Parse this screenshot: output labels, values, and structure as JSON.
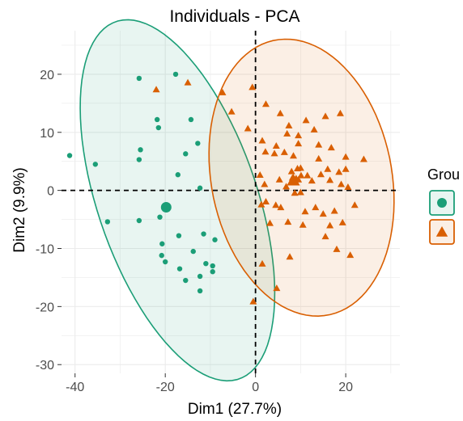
{
  "chart_data": {
    "type": "scatter",
    "title": "Individuals - PCA",
    "xlabel": "Dim1 (27.7%)",
    "ylabel": "Dim2 (9.9%)",
    "xlim": [
      -43,
      32
    ],
    "ylim": [
      -31.5,
      27.5
    ],
    "xticks": [
      -40,
      -20,
      0,
      20
    ],
    "yticks": [
      -30,
      -20,
      -10,
      0,
      10,
      20
    ],
    "grid": true,
    "legend": {
      "title": "Grou",
      "position": "right"
    },
    "colors": {
      "g1": "#1b9e77",
      "g2": "#d95f02"
    },
    "series": [
      {
        "marker": "circle",
        "color": "#1b9e77",
        "centroid": [
          -19.8,
          -2.9
        ],
        "ellipse": {
          "center": [
            -17.3,
            -1.7
          ],
          "semi_axes": [
            33.8,
            17.0
          ],
          "angle_deg": -63,
          "fill": "#1b9e77",
          "fill_opacity": 0.1
        },
        "points": [
          [
            -41.2,
            6.0
          ],
          [
            -35.5,
            4.5
          ],
          [
            -32.8,
            -5.4
          ],
          [
            -25.8,
            19.3
          ],
          [
            -25.5,
            7.0
          ],
          [
            -25.8,
            5.3
          ],
          [
            -25.8,
            -5.2
          ],
          [
            -21.8,
            12.2
          ],
          [
            -21.5,
            10.8
          ],
          [
            -21.2,
            -4.6
          ],
          [
            -20.7,
            -9.2
          ],
          [
            -20.0,
            -12.3
          ],
          [
            -17.7,
            20.0
          ],
          [
            -17.2,
            2.7
          ],
          [
            -17.0,
            -7.8
          ],
          [
            -16.8,
            -13.5
          ],
          [
            -15.5,
            6.3
          ],
          [
            -15.5,
            -15.5
          ],
          [
            -14.3,
            12.2
          ],
          [
            -13.8,
            -10.5
          ],
          [
            -12.8,
            8.1
          ],
          [
            -12.3,
            0.4
          ],
          [
            -12.3,
            -14.8
          ],
          [
            -12.3,
            -17.3
          ],
          [
            -11.5,
            -7.5
          ],
          [
            -9.5,
            -13.0
          ],
          [
            -9.5,
            -14.0
          ],
          [
            -9.0,
            -8.5
          ],
          [
            -20.8,
            -11.2
          ],
          [
            -11.0,
            -12.6
          ]
        ]
      },
      {
        "marker": "triangle",
        "color": "#d95f02",
        "centroid": [
          8.4,
          1.6
        ],
        "ellipse": {
          "center": [
            10.2,
            2.2
          ],
          "semi_axes": [
            24.6,
            19.6
          ],
          "angle_deg": -66,
          "fill": "#d95f02",
          "fill_opacity": 0.1
        },
        "points": [
          [
            -22.0,
            17.3
          ],
          [
            -15.0,
            18.5
          ],
          [
            -7.3,
            16.8
          ],
          [
            -5.3,
            13.5
          ],
          [
            -1.7,
            10.6
          ],
          [
            -0.7,
            17.7
          ],
          [
            1.0,
            2.6
          ],
          [
            1.3,
            -2.5
          ],
          [
            2.0,
            1.0
          ],
          [
            1.5,
            8.5
          ],
          [
            2.2,
            6.6
          ],
          [
            2.3,
            -2.0
          ],
          [
            2.3,
            14.8
          ],
          [
            3.2,
            -5.7
          ],
          [
            4.2,
            6.3
          ],
          [
            4.5,
            -2.6
          ],
          [
            4.6,
            7.6
          ],
          [
            5.3,
            1.8
          ],
          [
            5.5,
            13.2
          ],
          [
            5.6,
            -3.0
          ],
          [
            6.4,
            6.5
          ],
          [
            6.8,
            0.6
          ],
          [
            7.0,
            9.7
          ],
          [
            7.2,
            -5.5
          ],
          [
            7.4,
            11.1
          ],
          [
            7.6,
            -11.5
          ],
          [
            8.0,
            3.2
          ],
          [
            8.2,
            2.1
          ],
          [
            8.4,
            5.9
          ],
          [
            8.7,
            -0.5
          ],
          [
            9.0,
            2.0
          ],
          [
            9.3,
            3.7
          ],
          [
            9.5,
            8.0
          ],
          [
            9.5,
            9.4
          ],
          [
            10.0,
            -0.4
          ],
          [
            10.0,
            3.8
          ],
          [
            10.1,
            2.5
          ],
          [
            10.5,
            -6.0
          ],
          [
            11.0,
            -3.7
          ],
          [
            11.2,
            12.0
          ],
          [
            11.5,
            2.5
          ],
          [
            12.5,
            1.6
          ],
          [
            13.0,
            10.4
          ],
          [
            13.3,
            -3.0
          ],
          [
            14.0,
            5.4
          ],
          [
            14.0,
            7.8
          ],
          [
            14.5,
            2.7
          ],
          [
            15.0,
            -4.1
          ],
          [
            15.5,
            12.7
          ],
          [
            15.5,
            -8.0
          ],
          [
            16.0,
            3.6
          ],
          [
            16.5,
            1.7
          ],
          [
            16.5,
            -6.1
          ],
          [
            16.8,
            7.3
          ],
          [
            17.5,
            -3.6
          ],
          [
            18.0,
            -10.2
          ],
          [
            18.5,
            3.1
          ],
          [
            18.8,
            13.2
          ],
          [
            19.0,
            1.0
          ],
          [
            19.3,
            -5.6
          ],
          [
            20.0,
            3.6
          ],
          [
            20.0,
            5.7
          ],
          [
            20.5,
            0.5
          ],
          [
            21.0,
            -11.2
          ],
          [
            22.0,
            -2.6
          ],
          [
            24.0,
            5.3
          ],
          [
            1.5,
            -12.7
          ],
          [
            4.7,
            -16.9
          ],
          [
            -0.5,
            -19.2
          ],
          [
            9.5,
            1.8
          ]
        ]
      }
    ]
  }
}
